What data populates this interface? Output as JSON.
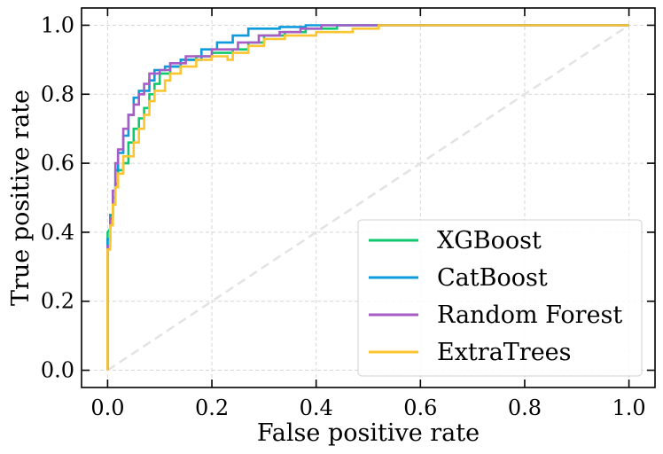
{
  "chart_data": {
    "type": "line",
    "title": "",
    "xlabel": "False positive rate",
    "ylabel": "True positive rate",
    "xlim": [
      -0.05,
      1.05
    ],
    "ylim": [
      -0.05,
      1.05
    ],
    "xticks": [
      0.0,
      0.2,
      0.4,
      0.6,
      0.8,
      1.0
    ],
    "xtick_labels": [
      "0.0",
      "0.2",
      "0.4",
      "0.6",
      "0.8",
      "1.0"
    ],
    "yticks": [
      0.0,
      0.2,
      0.4,
      0.6,
      0.8,
      1.0
    ],
    "ytick_labels": [
      "0.0",
      "0.2",
      "0.4",
      "0.6",
      "0.8",
      "1.0"
    ],
    "grid": true,
    "legend_position": "lower-right",
    "diagonal": {
      "name": "chance",
      "color": "#e3e3e3",
      "style": "dashed",
      "points": [
        [
          0,
          0
        ],
        [
          1,
          1
        ]
      ]
    },
    "series": [
      {
        "name": "XGBoost",
        "color": "#10c96f",
        "points": [
          [
            0,
            0
          ],
          [
            0,
            0.4
          ],
          [
            0.005,
            0.41
          ],
          [
            0.005,
            0.45
          ],
          [
            0.01,
            0.45
          ],
          [
            0.01,
            0.5
          ],
          [
            0.015,
            0.5
          ],
          [
            0.015,
            0.54
          ],
          [
            0.02,
            0.54
          ],
          [
            0.02,
            0.58
          ],
          [
            0.03,
            0.58
          ],
          [
            0.03,
            0.6
          ],
          [
            0.04,
            0.6
          ],
          [
            0.04,
            0.66
          ],
          [
            0.05,
            0.66
          ],
          [
            0.05,
            0.7
          ],
          [
            0.06,
            0.7
          ],
          [
            0.06,
            0.73
          ],
          [
            0.07,
            0.73
          ],
          [
            0.07,
            0.76
          ],
          [
            0.08,
            0.76
          ],
          [
            0.08,
            0.8
          ],
          [
            0.09,
            0.8
          ],
          [
            0.09,
            0.83
          ],
          [
            0.1,
            0.83
          ],
          [
            0.1,
            0.86
          ],
          [
            0.12,
            0.86
          ],
          [
            0.12,
            0.88
          ],
          [
            0.14,
            0.88
          ],
          [
            0.14,
            0.9
          ],
          [
            0.17,
            0.9
          ],
          [
            0.17,
            0.91
          ],
          [
            0.2,
            0.91
          ],
          [
            0.2,
            0.92
          ],
          [
            0.24,
            0.92
          ],
          [
            0.24,
            0.93
          ],
          [
            0.27,
            0.93
          ],
          [
            0.27,
            0.95
          ],
          [
            0.3,
            0.95
          ],
          [
            0.3,
            0.97
          ],
          [
            0.34,
            0.97
          ],
          [
            0.34,
            0.98
          ],
          [
            0.38,
            0.98
          ],
          [
            0.38,
            0.99
          ],
          [
            0.44,
            0.99
          ],
          [
            0.44,
            1.0
          ],
          [
            1.0,
            1.0
          ]
        ]
      },
      {
        "name": "CatBoost",
        "color": "#0e9bdb",
        "points": [
          [
            0,
            0
          ],
          [
            0,
            0.38
          ],
          [
            0.005,
            0.38
          ],
          [
            0.005,
            0.45
          ],
          [
            0.01,
            0.45
          ],
          [
            0.01,
            0.52
          ],
          [
            0.015,
            0.52
          ],
          [
            0.015,
            0.58
          ],
          [
            0.02,
            0.58
          ],
          [
            0.02,
            0.63
          ],
          [
            0.03,
            0.63
          ],
          [
            0.03,
            0.68
          ],
          [
            0.04,
            0.68
          ],
          [
            0.04,
            0.74
          ],
          [
            0.05,
            0.74
          ],
          [
            0.05,
            0.79
          ],
          [
            0.06,
            0.79
          ],
          [
            0.06,
            0.81
          ],
          [
            0.08,
            0.81
          ],
          [
            0.08,
            0.84
          ],
          [
            0.09,
            0.84
          ],
          [
            0.09,
            0.87
          ],
          [
            0.11,
            0.87
          ],
          [
            0.11,
            0.88
          ],
          [
            0.14,
            0.88
          ],
          [
            0.14,
            0.9
          ],
          [
            0.18,
            0.9
          ],
          [
            0.18,
            0.93
          ],
          [
            0.21,
            0.93
          ],
          [
            0.21,
            0.95
          ],
          [
            0.24,
            0.95
          ],
          [
            0.24,
            0.97
          ],
          [
            0.27,
            0.97
          ],
          [
            0.27,
            0.99
          ],
          [
            0.33,
            0.99
          ],
          [
            0.33,
            0.995
          ],
          [
            0.38,
            0.995
          ],
          [
            0.38,
            1.0
          ],
          [
            1.0,
            1.0
          ]
        ]
      },
      {
        "name": "Random Forest",
        "color": "#a75cc6",
        "points": [
          [
            0,
            0
          ],
          [
            0,
            0.36
          ],
          [
            0.005,
            0.36
          ],
          [
            0.005,
            0.44
          ],
          [
            0.01,
            0.44
          ],
          [
            0.01,
            0.52
          ],
          [
            0.015,
            0.52
          ],
          [
            0.015,
            0.6
          ],
          [
            0.02,
            0.6
          ],
          [
            0.02,
            0.64
          ],
          [
            0.03,
            0.64
          ],
          [
            0.03,
            0.7
          ],
          [
            0.04,
            0.7
          ],
          [
            0.04,
            0.74
          ],
          [
            0.05,
            0.74
          ],
          [
            0.05,
            0.77
          ],
          [
            0.06,
            0.77
          ],
          [
            0.06,
            0.8
          ],
          [
            0.07,
            0.8
          ],
          [
            0.07,
            0.83
          ],
          [
            0.08,
            0.83
          ],
          [
            0.08,
            0.86
          ],
          [
            0.1,
            0.86
          ],
          [
            0.1,
            0.87
          ],
          [
            0.12,
            0.87
          ],
          [
            0.12,
            0.89
          ],
          [
            0.15,
            0.89
          ],
          [
            0.15,
            0.91
          ],
          [
            0.2,
            0.91
          ],
          [
            0.2,
            0.93
          ],
          [
            0.25,
            0.93
          ],
          [
            0.25,
            0.95
          ],
          [
            0.29,
            0.95
          ],
          [
            0.29,
            0.97
          ],
          [
            0.33,
            0.97
          ],
          [
            0.33,
            0.98
          ],
          [
            0.37,
            0.98
          ],
          [
            0.37,
            0.99
          ],
          [
            0.41,
            0.99
          ],
          [
            0.41,
            1.0
          ],
          [
            1.0,
            1.0
          ]
        ]
      },
      {
        "name": "ExtraTrees",
        "color": "#fbc531",
        "points": [
          [
            0,
            0
          ],
          [
            0,
            0.35
          ],
          [
            0.005,
            0.35
          ],
          [
            0.005,
            0.42
          ],
          [
            0.01,
            0.42
          ],
          [
            0.01,
            0.48
          ],
          [
            0.015,
            0.48
          ],
          [
            0.015,
            0.53
          ],
          [
            0.02,
            0.53
          ],
          [
            0.02,
            0.57
          ],
          [
            0.03,
            0.57
          ],
          [
            0.03,
            0.62
          ],
          [
            0.05,
            0.62
          ],
          [
            0.05,
            0.66
          ],
          [
            0.06,
            0.66
          ],
          [
            0.06,
            0.7
          ],
          [
            0.07,
            0.7
          ],
          [
            0.07,
            0.74
          ],
          [
            0.08,
            0.74
          ],
          [
            0.08,
            0.78
          ],
          [
            0.09,
            0.78
          ],
          [
            0.09,
            0.81
          ],
          [
            0.11,
            0.81
          ],
          [
            0.11,
            0.84
          ],
          [
            0.12,
            0.84
          ],
          [
            0.12,
            0.86
          ],
          [
            0.14,
            0.86
          ],
          [
            0.14,
            0.88
          ],
          [
            0.17,
            0.88
          ],
          [
            0.17,
            0.9
          ],
          [
            0.2,
            0.9
          ],
          [
            0.2,
            0.91
          ],
          [
            0.23,
            0.91
          ],
          [
            0.23,
            0.9
          ],
          [
            0.24,
            0.9
          ],
          [
            0.24,
            0.92
          ],
          [
            0.27,
            0.92
          ],
          [
            0.27,
            0.94
          ],
          [
            0.3,
            0.94
          ],
          [
            0.3,
            0.96
          ],
          [
            0.34,
            0.96
          ],
          [
            0.34,
            0.97
          ],
          [
            0.4,
            0.97
          ],
          [
            0.4,
            0.98
          ],
          [
            0.47,
            0.98
          ],
          [
            0.47,
            0.99
          ],
          [
            0.52,
            0.99
          ],
          [
            0.52,
            1.0
          ],
          [
            1.0,
            1.0
          ]
        ]
      }
    ]
  }
}
